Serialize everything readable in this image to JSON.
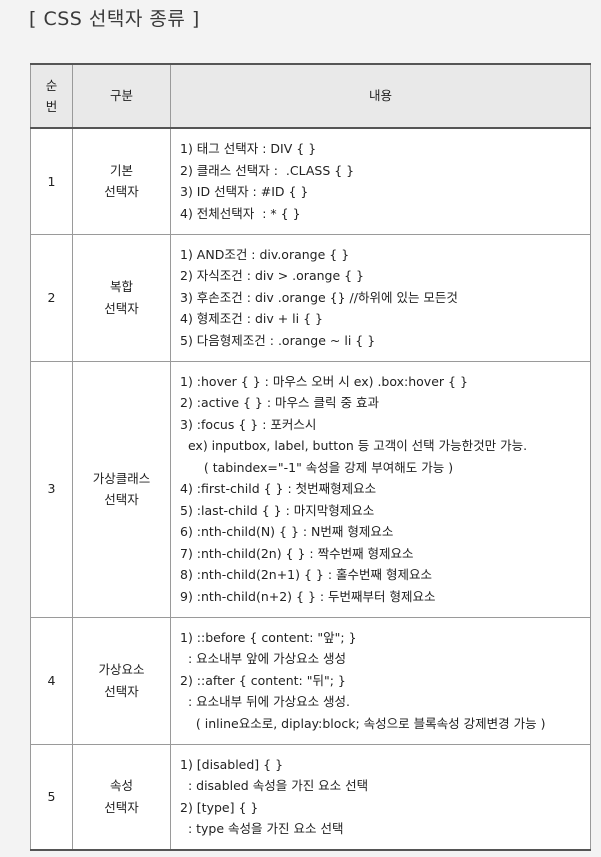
{
  "page": {
    "title": "[ CSS 선택자 종류 ]"
  },
  "table": {
    "header": {
      "number": [
        "순",
        "번"
      ],
      "category": "구분",
      "content": "내용"
    },
    "rows": [
      {
        "number": "1",
        "category": [
          "기본",
          "선택자"
        ],
        "lines": [
          "1) 태그 선택자 : DIV { }",
          "2) 클래스 선택자 :  .CLASS { }",
          "3) ID 선택자 : #ID { }",
          "4) 전체선택자  : * { }"
        ]
      },
      {
        "number": "2",
        "category": [
          "복합",
          "선택자"
        ],
        "lines": [
          "1) AND조건 : div.orange { }",
          "2) 자식조건 : div > .orange { }",
          "3) 후손조건 : div .orange {} //하위에 있는 모든것",
          "4) 형제조건 : div + li { }",
          "5) 다음형제조건 : .orange ~ li { }"
        ]
      },
      {
        "number": "3",
        "category": [
          "가상클래스",
          "선택자"
        ],
        "lines": [
          "1) :hover { } : 마우스 오버 시 ex) .box:hover { }",
          "2) :active { } : 마우스 클릭 중 효과",
          "3) :focus { } : 포커스시",
          "  ex) inputbox, label, button 등 고객이 선택 가능한것만 가능.",
          "      ( tabindex=\"-1\" 속성을 강제 부여해도 가능 )",
          "4) :first-child { } : 첫번째형제요소",
          "5) :last-child { } : 마지막형제요소",
          "6) :nth-child(N) { } : N번째 형제요소",
          "7) :nth-child(2n) { } : 짝수번째 형제요소",
          "8) :nth-child(2n+1) { } : 홀수번째 형제요소",
          "9) :nth-child(n+2) { } : 두번째부터 형제요소"
        ]
      },
      {
        "number": "4",
        "category": [
          "가상요소",
          "선택자"
        ],
        "lines": [
          "1) ::before { content: \"앞\"; }",
          "  : 요소내부 앞에 가상요소 생성",
          "2) ::after { content: \"뒤\"; }",
          "  : 요소내부 뒤에 가상요소 생성.",
          "    ( inline요소로, diplay:block; 속성으로 블록속성 강제변경 가능 )"
        ]
      },
      {
        "number": "5",
        "category": [
          "속성",
          "선택자"
        ],
        "lines": [
          "1) [disabled] { }",
          "  : disabled 속성을 가진 요소 선택",
          "2) [type] { }",
          "  : type 속성을 가진 요소 선택"
        ]
      }
    ]
  }
}
